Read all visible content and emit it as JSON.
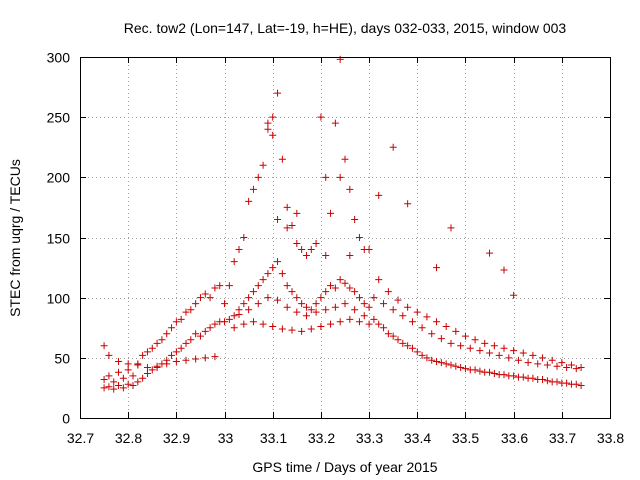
{
  "chart_data": {
    "type": "scatter",
    "title": "Rec. tow2 (Lon=147, Lat=-19, h=HE), days 032-033, 2015, window 003",
    "xlabel": "GPS time / Days of year 2015",
    "ylabel": "STEC from uqrg / TECUs",
    "xlim": [
      32.7,
      33.8
    ],
    "ylim": [
      0,
      300
    ],
    "xticks": [
      "32.7",
      "32.8",
      "32.9",
      "33",
      "33.1",
      "33.2",
      "33.3",
      "33.4",
      "33.5",
      "33.6",
      "33.7",
      "33.8"
    ],
    "yticks": [
      "0",
      "50",
      "100",
      "150",
      "200",
      "250",
      "300"
    ],
    "grid": true,
    "marker": "plus",
    "color": "#cc0000",
    "x": [
      32.75,
      32.75,
      32.76,
      32.76,
      32.77,
      32.77,
      32.78,
      32.78,
      32.79,
      32.79,
      32.8,
      32.8,
      32.81,
      32.81,
      32.82,
      32.82,
      32.83,
      32.83,
      32.84,
      32.84,
      32.85,
      32.85,
      32.86,
      32.86,
      32.87,
      32.87,
      32.88,
      32.88,
      32.89,
      32.89,
      32.9,
      32.9,
      32.91,
      32.91,
      32.92,
      32.92,
      32.93,
      32.93,
      32.94,
      32.94,
      32.95,
      32.95,
      32.96,
      32.96,
      32.97,
      32.97,
      32.98,
      32.98,
      32.99,
      32.99,
      32.75,
      32.76,
      32.78,
      32.8,
      32.82,
      32.84,
      32.86,
      32.88,
      32.9,
      32.92,
      32.94,
      32.96,
      32.98,
      33.0,
      33.0,
      33.01,
      33.01,
      33.02,
      33.02,
      33.03,
      33.03,
      33.04,
      33.04,
      33.05,
      33.05,
      33.06,
      33.06,
      33.07,
      33.07,
      33.08,
      33.08,
      33.09,
      33.09,
      33.1,
      33.1,
      33.11,
      33.11,
      33.12,
      33.12,
      33.13,
      33.13,
      33.14,
      33.14,
      33.15,
      33.15,
      33.16,
      33.16,
      33.17,
      33.17,
      33.18,
      33.18,
      33.19,
      33.19,
      33.2,
      33.2,
      33.21,
      33.21,
      33.22,
      33.22,
      33.23,
      33.23,
      33.24,
      33.24,
      33.25,
      33.25,
      33.26,
      33.26,
      33.27,
      33.27,
      33.28,
      33.28,
      33.29,
      33.29,
      33.3,
      33.3,
      33.02,
      33.04,
      33.06,
      33.08,
      33.1,
      33.12,
      33.14,
      33.16,
      33.18,
      33.2,
      33.22,
      33.24,
      33.26,
      33.28,
      33.3,
      33.03,
      33.05,
      33.07,
      33.09,
      33.11,
      33.13,
      33.15,
      33.17,
      33.19,
      33.21,
      33.23,
      33.25,
      33.27,
      33.29,
      33.31,
      33.32,
      33.33,
      33.34,
      33.35,
      33.36,
      33.37,
      33.38,
      33.39,
      33.4,
      33.41,
      33.42,
      33.43,
      33.44,
      33.45,
      33.46,
      33.47,
      33.48,
      33.49,
      33.5,
      33.51,
      33.52,
      33.53,
      33.54,
      33.55,
      33.56,
      33.57,
      33.58,
      33.59,
      33.6,
      33.61,
      33.62,
      33.63,
      33.64,
      33.65,
      33.66,
      33.67,
      33.68,
      33.69,
      33.7,
      33.71,
      33.72,
      33.73,
      33.74,
      33.31,
      33.33,
      33.35,
      33.37,
      33.39,
      33.41,
      33.43,
      33.45,
      33.47,
      33.49,
      33.51,
      33.53,
      33.55,
      33.57,
      33.59,
      33.61,
      33.63,
      33.65,
      33.67,
      33.69,
      33.71,
      33.73,
      33.32,
      33.34,
      33.36,
      33.38,
      33.4,
      33.42,
      33.44,
      33.46,
      33.48,
      33.5,
      33.52,
      33.54,
      33.56,
      33.58,
      33.6,
      33.62,
      33.64,
      33.66,
      33.68,
      33.7,
      33.72,
      33.74,
      33.1,
      33.09,
      33.24,
      33.21,
      33.32,
      33.35,
      33.38,
      33.44,
      33.47,
      33.55,
      33.58,
      33.6,
      33.11,
      33.15,
      33.13,
      33.26
    ],
    "y": [
      25,
      32,
      26,
      35,
      24,
      30,
      27,
      38,
      25,
      33,
      28,
      40,
      27,
      35,
      30,
      45,
      33,
      52,
      37,
      55,
      40,
      58,
      42,
      62,
      45,
      65,
      48,
      70,
      52,
      75,
      55,
      80,
      58,
      82,
      62,
      88,
      65,
      90,
      70,
      95,
      68,
      100,
      72,
      103,
      75,
      100,
      78,
      108,
      80,
      110,
      60,
      52,
      47,
      45,
      44,
      42,
      43,
      45,
      47,
      48,
      49,
      50,
      51,
      80,
      95,
      82,
      110,
      85,
      130,
      90,
      140,
      95,
      150,
      100,
      180,
      105,
      190,
      110,
      200,
      115,
      210,
      120,
      240,
      125,
      250,
      130,
      270,
      120,
      215,
      110,
      175,
      105,
      160,
      100,
      145,
      95,
      140,
      92,
      135,
      90,
      140,
      95,
      145,
      100,
      250,
      105,
      200,
      110,
      170,
      108,
      245,
      115,
      298,
      112,
      215,
      108,
      190,
      105,
      165,
      100,
      150,
      95,
      140,
      92,
      140,
      75,
      78,
      80,
      78,
      76,
      74,
      73,
      72,
      74,
      76,
      78,
      80,
      82,
      80,
      78,
      86,
      90,
      95,
      100,
      98,
      92,
      88,
      85,
      88,
      90,
      92,
      95,
      90,
      85,
      82,
      78,
      75,
      70,
      68,
      65,
      62,
      60,
      58,
      55,
      52,
      50,
      48,
      47,
      46,
      45,
      44,
      43,
      42,
      41,
      40,
      40,
      39,
      38,
      38,
      37,
      36,
      36,
      35,
      35,
      34,
      34,
      33,
      33,
      32,
      32,
      31,
      30,
      30,
      29,
      29,
      28,
      28,
      27,
      100,
      95,
      90,
      85,
      80,
      75,
      70,
      66,
      62,
      60,
      58,
      56,
      54,
      52,
      50,
      48,
      46,
      45,
      44,
      43,
      42,
      41,
      115,
      105,
      98,
      92,
      88,
      84,
      80,
      76,
      72,
      68,
      65,
      62,
      60,
      58,
      56,
      54,
      52,
      50,
      48,
      46,
      44,
      42,
      235,
      245,
      200,
      135,
      185,
      225,
      178,
      125,
      158,
      137,
      123,
      102,
      165,
      170,
      158,
      135
    ]
  }
}
